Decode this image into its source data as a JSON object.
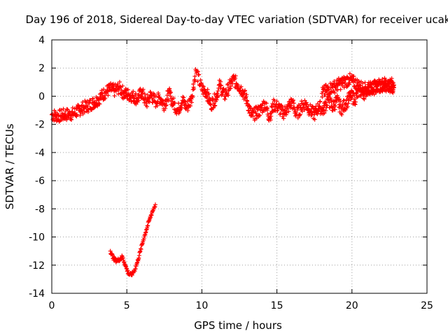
{
  "chart_data": {
    "type": "scatter",
    "title": "Day 196 of 2018, Sidereal Day-to-day VTEC variation (SDTVAR) for receiver ucak",
    "xlabel": "GPS time / hours",
    "ylabel": "SDTVAR / TECUs",
    "xlim": [
      0,
      25
    ],
    "ylim": [
      -14,
      4
    ],
    "xticks": [
      0,
      5,
      10,
      15,
      20,
      25
    ],
    "yticks": [
      -14,
      -12,
      -10,
      -8,
      -6,
      -4,
      -2,
      0,
      2,
      4
    ],
    "grid": true,
    "marker": "+",
    "series": [
      {
        "name": "main track",
        "color": "#ff0000",
        "x": [
          0.0,
          0.3,
          0.6,
          0.9,
          1.2,
          1.5,
          1.8,
          2.1,
          2.4,
          2.7,
          3.0,
          3.3,
          3.6,
          3.9,
          4.2,
          4.5,
          4.8,
          5.1,
          5.4,
          5.7,
          6.0,
          6.3,
          6.6,
          6.9,
          7.2,
          7.5,
          7.8,
          8.1,
          8.4,
          8.7,
          9.0,
          9.3,
          9.6,
          10.0,
          10.3,
          10.6,
          10.9,
          11.2,
          11.5,
          11.8,
          12.1,
          12.4,
          12.7,
          13.0,
          13.3,
          13.6,
          13.9,
          14.2,
          14.5,
          14.8,
          15.1,
          15.4,
          15.7,
          16.0,
          16.3,
          16.6,
          16.9,
          17.2,
          17.5,
          17.8,
          18.1,
          18.4,
          18.7,
          19.0,
          19.3,
          19.6,
          19.9,
          20.2,
          20.5,
          20.8,
          21.1,
          21.4,
          21.7,
          22.0,
          22.3,
          22.6,
          22.8
        ],
        "y": [
          -1.3,
          -1.4,
          -1.4,
          -1.3,
          -1.3,
          -1.2,
          -1.0,
          -0.8,
          -0.7,
          -0.5,
          -0.3,
          0.0,
          0.3,
          0.5,
          0.4,
          0.6,
          0.2,
          0.1,
          0.0,
          -0.2,
          0.3,
          -0.5,
          0.1,
          -0.4,
          -0.1,
          -0.6,
          0.2,
          -0.5,
          -1.0,
          -0.3,
          -0.8,
          -0.2,
          1.8,
          0.5,
          0.3,
          -0.6,
          -0.2,
          0.8,
          0.0,
          0.6,
          1.2,
          0.8,
          0.4,
          -0.3,
          -1.4,
          -1.2,
          -1.0,
          -0.5,
          -1.5,
          -0.6,
          -0.8,
          -1.2,
          -0.9,
          -0.4,
          -1.3,
          -0.8,
          -0.5,
          -1.0,
          -1.3,
          -0.7,
          -1.0,
          -0.2,
          -0.8,
          -0.3,
          -0.9,
          -0.5,
          0.0,
          -0.2,
          0.4,
          0.2,
          0.6,
          0.5,
          0.7,
          0.6,
          0.8,
          0.7,
          0.6
        ]
      },
      {
        "name": "upper track",
        "color": "#ff0000",
        "x": [
          18.0,
          18.3,
          18.6,
          18.9,
          19.2,
          19.5,
          19.8,
          20.1,
          20.4,
          20.7,
          21.0,
          21.3,
          21.6,
          21.9,
          22.2,
          22.5,
          22.8
        ],
        "y": [
          0.2,
          0.4,
          0.6,
          0.7,
          0.9,
          1.0,
          1.2,
          1.0,
          0.8,
          0.6,
          0.5,
          0.6,
          0.7,
          0.8,
          0.9,
          0.9,
          0.8
        ]
      },
      {
        "name": "low arc",
        "color": "#ff0000",
        "x": [
          3.9,
          4.1,
          4.3,
          4.5,
          4.7,
          4.9,
          5.1,
          5.3,
          5.5,
          5.7,
          5.9,
          6.1,
          6.3,
          6.5,
          6.7,
          6.9
        ],
        "y": [
          -11.0,
          -11.5,
          -11.7,
          -11.6,
          -11.4,
          -12.0,
          -12.6,
          -12.7,
          -12.4,
          -11.8,
          -11.0,
          -10.2,
          -9.5,
          -8.8,
          -8.2,
          -7.7
        ]
      }
    ]
  }
}
